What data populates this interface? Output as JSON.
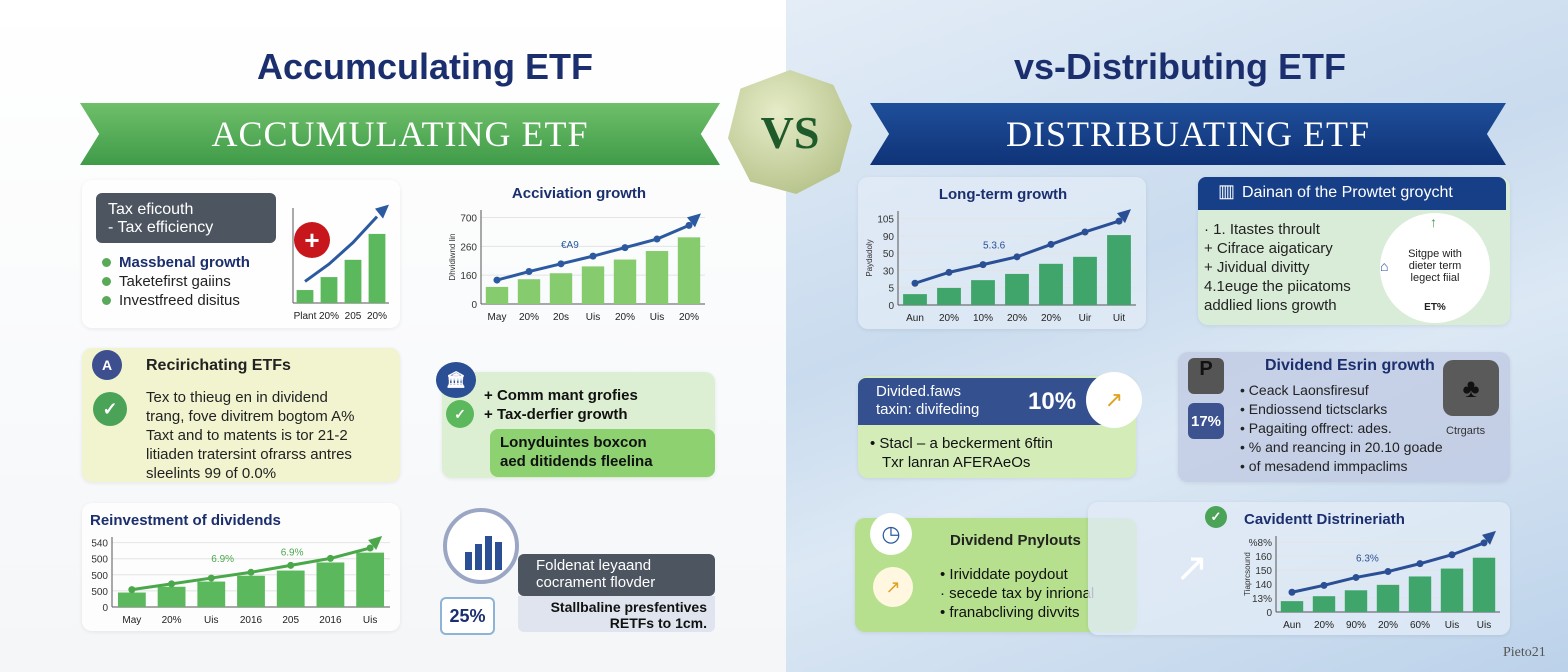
{
  "titles": {
    "left": "Accumculating ETF",
    "right": "vs-Distributing ETF",
    "vs": "VS",
    "ribbon_left": "ACCUMULATING ETF",
    "ribbon_right": "DISTRIBUATING ETF"
  },
  "left": {
    "tax_box": {
      "line1": "Tax eficouth",
      "line2": "-  Tax efficiency"
    },
    "bullets": [
      "Massbenal growth",
      "Taketefirst gaiins",
      "Investfreed disitus"
    ],
    "plus_icon": "plus-icon",
    "recirc": {
      "title": "Recirichating ETFs",
      "lines": [
        "Tex to thieug en in dividend",
        "trang, fove divitrem bogtom A%",
        "Taxt and to matents is tor 21-2",
        "litiaden tratersint ofrarss antres",
        "sleelints 99 of 0.0%"
      ]
    },
    "green_card": {
      "items": [
        "Comm mant grofies",
        "Tax-derfier growth"
      ],
      "box_line1": "Lonyduintes boxcon",
      "box_line2": "aed ditidends fleelina"
    },
    "badge_pct": "25%",
    "fold_box": {
      "line1": "Foldenat leyaand",
      "line2": "cocrament flovder"
    },
    "light_box": {
      "line1": "Stallbaline presfentives",
      "line2": "RETFs to 1cm."
    }
  },
  "right": {
    "dainan": {
      "title": "Dainan of the Prowtet groycht",
      "lines": [
        "· 1. Itastes throult",
        "+ Cifrace aigaticary",
        "+ Jividual divitty",
        "4.1euge the piicatoms",
        "addlied lions growth"
      ],
      "circle_text": [
        "Sitgpe with",
        "dieter term",
        "legect fiial"
      ],
      "circle_label": "ET%"
    },
    "divided": {
      "line1": "Divided.faws",
      "line2": "taxin: divifeding",
      "pct": "10%",
      "line3": "Stacl – a beckerment 6ftin",
      "line4": "Txr lanran AFERAeOs"
    },
    "esrin": {
      "title": "Dividend Esrin growth",
      "pct": "17%",
      "items": [
        "Ceack Laonsfiresuf",
        "Endiossend tictsclarks",
        "Pagaiting offrect: ades.",
        "% and reancing in 20.10 goade",
        "of mesadend immpaclims"
      ],
      "side_label": "Ctrgarts"
    },
    "payouts": {
      "title": "Dividend Pnylouts",
      "items": [
        "Irividdate poydout",
        "secede tax by inrional",
        "franabcliving divvits"
      ]
    },
    "watermark": "Pieto21"
  },
  "colors": {
    "green": "#5cb85c",
    "green_dark": "#3e9a4c",
    "navy": "#1b2f6e",
    "blue_line": "#2b5aa0",
    "red": "#c8161d"
  },
  "chart_data": [
    {
      "type": "bar",
      "id": "c1",
      "title": "",
      "bars": [
        15,
        30,
        50,
        80
      ],
      "line": [
        25,
        45,
        70,
        100
      ],
      "yticks": [],
      "xlabels": [
        "Plant",
        "20%",
        "205",
        "20%"
      ],
      "ylim": [
        0,
        100
      ],
      "bar_color": "#5cb85c",
      "line_color": "#2b5aa0"
    },
    {
      "type": "bar",
      "id": "c2",
      "title": "Acciviation growth",
      "bars": [
        20,
        29,
        36,
        44,
        52,
        62,
        78
      ],
      "line": [
        28,
        38,
        47,
        56,
        66,
        76,
        92
      ],
      "yticks": [
        "0",
        "160",
        "260",
        "700"
      ],
      "ylabel": "Dhvidiwnd lin",
      "annotation": "€A9",
      "xlabels": [
        "May",
        "20%",
        "20s",
        "Uis",
        "20%",
        "Uis",
        "20%"
      ],
      "ylim": [
        0,
        100
      ],
      "bar_color": "#86cc6e",
      "line_color": "#2b5aa0"
    },
    {
      "type": "bar",
      "id": "c3",
      "title": "Reinvestment of dividends",
      "bars": [
        25,
        35,
        44,
        54,
        63,
        77,
        94
      ],
      "line": [
        30,
        40,
        50,
        60,
        72,
        84,
        102
      ],
      "yticks": [
        "0",
        "500",
        "500",
        "500",
        "540"
      ],
      "annotation": "6.9%",
      "annotation2": "6.9%",
      "xlabels": [
        "May",
        "20%",
        "Uis",
        "2016",
        "205",
        "2016",
        "Uis"
      ],
      "ylim": [
        0,
        110
      ],
      "bar_color": "#5cb85c",
      "line_color": "#4aa84a"
    },
    {
      "type": "bar",
      "id": "c4",
      "title": "Long-term growth",
      "bars": [
        14,
        22,
        32,
        40,
        53,
        62,
        90
      ],
      "line": [
        28,
        42,
        52,
        62,
        78,
        94,
        108
      ],
      "yticks": [
        "0",
        "5",
        "30",
        "50",
        "90",
        "105"
      ],
      "ylabel": "Paydadoly",
      "annotation": "5.3.6",
      "xlabels": [
        "Aun",
        "20%",
        "10%",
        "20%",
        "20%",
        "Uir",
        "Uit"
      ],
      "ylim": [
        0,
        110
      ],
      "bar_color": "#3fa56a",
      "line_color": "#2b4f94"
    },
    {
      "type": "bar",
      "id": "c5",
      "title": "Cavidentt Distrineriath",
      "bars": [
        22,
        32,
        44,
        55,
        72,
        88,
        110
      ],
      "line": [
        40,
        54,
        70,
        82,
        98,
        116,
        140
      ],
      "yticks": [
        "0",
        "13%",
        "140",
        "150",
        "160",
        "%8%"
      ],
      "ylabel": "Tiaprcsound",
      "annotation": "6.3%",
      "xlabels": [
        "Aun",
        "20%",
        "90%",
        "20%",
        "60%",
        "Uis",
        "Uis"
      ],
      "ylim": [
        0,
        140
      ],
      "bar_color": "#3fa56a",
      "line_color": "#2b4f94"
    }
  ]
}
